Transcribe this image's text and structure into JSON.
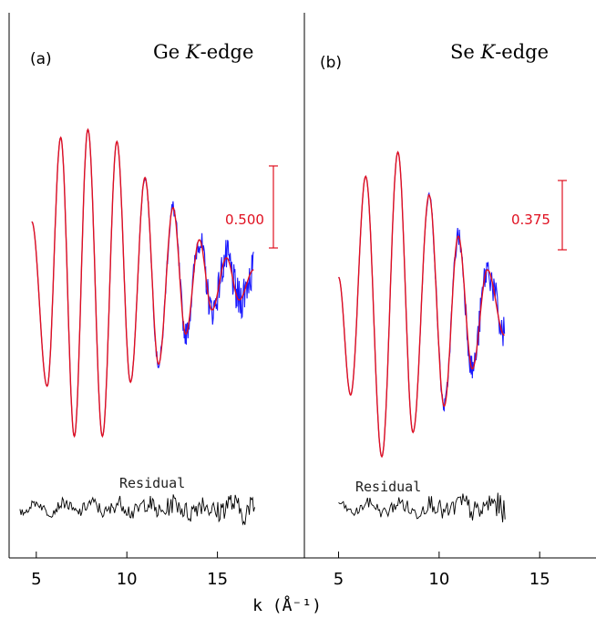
{
  "xlabel": "k (Å⁻¹)",
  "colors": {
    "data": "#1a1aff",
    "fit": "#e01020",
    "residual": "#000000",
    "scale_bar": "#e01020"
  },
  "chart_data": [
    {
      "type": "line",
      "panel_label": "(a)",
      "title_prefix": "Ge ",
      "title_italic": "K",
      "title_suffix": "-edge",
      "xlim": [
        3.5,
        19.8
      ],
      "xticks": [
        5,
        10,
        15
      ],
      "tick_labels": [
        "5",
        "10",
        "15"
      ],
      "k_range": [
        4.1,
        17.1
      ],
      "fit_peaks": [
        {
          "k": 4.75,
          "y": 0.24
        },
        {
          "k": 5.6,
          "y": -0.58
        },
        {
          "k": 6.35,
          "y": 0.66
        },
        {
          "k": 7.1,
          "y": -0.83
        },
        {
          "k": 7.85,
          "y": 0.7
        },
        {
          "k": 8.65,
          "y": -0.83
        },
        {
          "k": 9.45,
          "y": 0.64
        },
        {
          "k": 10.2,
          "y": -0.56
        },
        {
          "k": 11.0,
          "y": 0.46
        },
        {
          "k": 11.75,
          "y": -0.47
        },
        {
          "k": 12.55,
          "y": 0.31
        },
        {
          "k": 13.25,
          "y": -0.32
        },
        {
          "k": 14.0,
          "y": 0.15
        },
        {
          "k": 14.7,
          "y": -0.2
        },
        {
          "k": 15.5,
          "y": 0.06
        },
        {
          "k": 16.2,
          "y": -0.15
        },
        {
          "k": 17.0,
          "y": 0.0
        }
      ],
      "scale_bar_value": "0.500",
      "residual_label": "Residual"
    },
    {
      "type": "line",
      "panel_label": "(b)",
      "title_prefix": "Se ",
      "title_italic": "K",
      "title_suffix": "-edge",
      "xlim": [
        3.3,
        17.8
      ],
      "xticks": [
        5,
        10,
        15
      ],
      "tick_labels": [
        "5",
        "10",
        "15"
      ],
      "k_range": [
        5.0,
        13.3
      ],
      "fit_peaks": [
        {
          "k": 5.0,
          "y": -0.03
        },
        {
          "k": 5.6,
          "y": -0.66
        },
        {
          "k": 6.35,
          "y": 0.51
        },
        {
          "k": 7.15,
          "y": -0.99
        },
        {
          "k": 7.95,
          "y": 0.64
        },
        {
          "k": 8.7,
          "y": -0.86
        },
        {
          "k": 9.5,
          "y": 0.41
        },
        {
          "k": 10.25,
          "y": -0.72
        },
        {
          "k": 10.95,
          "y": 0.19
        },
        {
          "k": 11.65,
          "y": -0.52
        },
        {
          "k": 12.4,
          "y": 0.01
        },
        {
          "k": 13.25,
          "y": -0.34
        }
      ],
      "scale_bar_value": "0.375",
      "residual_label": "Residual"
    }
  ]
}
